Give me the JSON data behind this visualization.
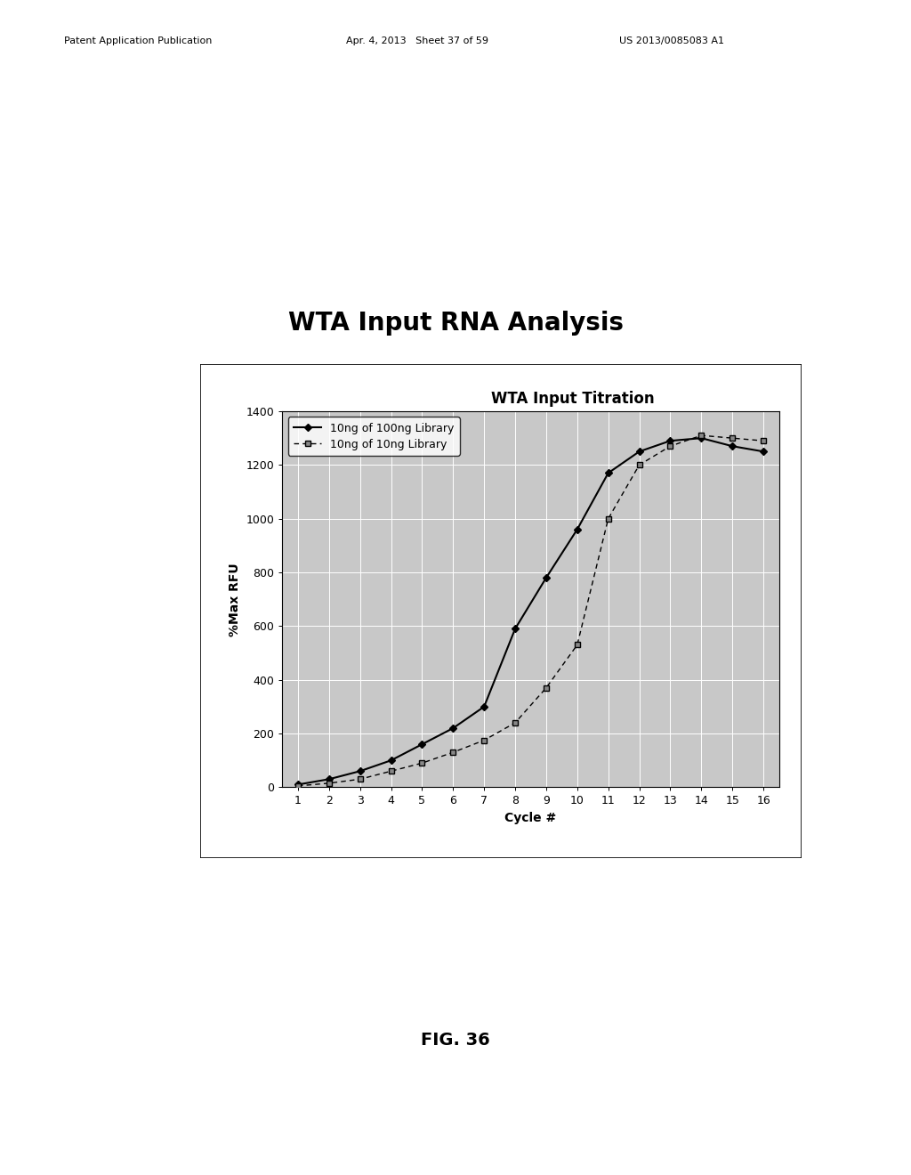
{
  "title_main": "WTA Input RNA Analysis",
  "chart_title": "WTA Input Titration",
  "xlabel": "Cycle #",
  "ylabel": "%Max RFU",
  "xlim": [
    0.5,
    16.5
  ],
  "ylim": [
    0,
    1400
  ],
  "yticks": [
    0,
    200,
    400,
    600,
    800,
    1000,
    1200,
    1400
  ],
  "xticks": [
    1,
    2,
    3,
    4,
    5,
    6,
    7,
    8,
    9,
    10,
    11,
    12,
    13,
    14,
    15,
    16
  ],
  "series1_label": "10ng of 100ng Library",
  "series2_label": "10ng of 10ng Library",
  "series1_x": [
    1,
    2,
    3,
    4,
    5,
    6,
    7,
    8,
    9,
    10,
    11,
    12,
    13,
    14,
    15,
    16
  ],
  "series1_y": [
    10,
    30,
    60,
    100,
    160,
    220,
    300,
    590,
    780,
    960,
    1170,
    1250,
    1290,
    1300,
    1270,
    1250
  ],
  "series2_x": [
    1,
    2,
    3,
    4,
    5,
    6,
    7,
    8,
    9,
    10,
    11,
    12,
    13,
    14,
    15,
    16
  ],
  "series2_y": [
    5,
    15,
    30,
    60,
    90,
    130,
    175,
    240,
    370,
    530,
    1000,
    1200,
    1270,
    1310,
    1300,
    1290
  ],
  "line_color": "#000000",
  "plot_bg_color": "#c8c8c8",
  "grid_color": "#ffffff",
  "outer_bg": "#ffffff",
  "header_left": "Patent Application Publication",
  "header_mid": "Apr. 4, 2013   Sheet 37 of 59",
  "header_right": "US 2013/0085083 A1",
  "fig_label": "FIG. 36",
  "title_fontsize": 20,
  "chart_title_fontsize": 12,
  "axis_label_fontsize": 10,
  "tick_fontsize": 9,
  "legend_fontsize": 9,
  "header_fontsize": 8,
  "figlabel_fontsize": 14
}
